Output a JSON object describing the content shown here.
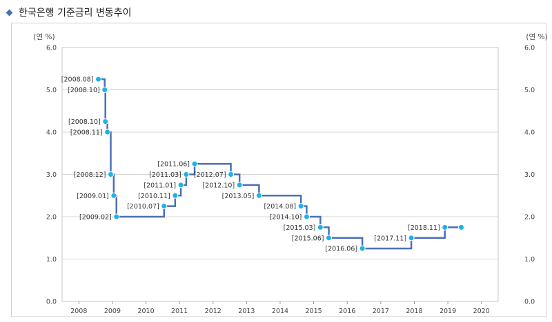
{
  "header": {
    "title": "한국은행 기준금리 변동추이",
    "icon": "diamond-bullet-icon"
  },
  "chart_data": {
    "type": "line",
    "step": true,
    "ylabel_left": "(연 %)",
    "ylabel_right": "(연 %)",
    "xlim": [
      2007.5,
      2020.5
    ],
    "ylim": [
      0,
      6
    ],
    "grid": true,
    "x_ticks": [
      "2008",
      "2009",
      "2010",
      "2011",
      "2012",
      "2013",
      "2014",
      "2015",
      "2016",
      "2017",
      "2018",
      "2019",
      "2020"
    ],
    "y_ticks": [
      "0.0",
      "1.0",
      "2.0",
      "3.0",
      "4.0",
      "5.0",
      "6.0"
    ],
    "series": [
      {
        "color": "#4a6fb5",
        "marker_color": "#1fb2e8",
        "points": [
          {
            "x": 2008.58,
            "y": 5.25,
            "label": "[2008.08]"
          },
          {
            "x": 2008.77,
            "y": 5.0,
            "label": "[2008.10]"
          },
          {
            "x": 2008.79,
            "y": 4.25,
            "label": "[2008.10]"
          },
          {
            "x": 2008.85,
            "y": 4.0,
            "label": "[2008.11]"
          },
          {
            "x": 2008.95,
            "y": 3.0,
            "label": "[2008.12]"
          },
          {
            "x": 2009.04,
            "y": 2.5,
            "label": "[2009.01]"
          },
          {
            "x": 2009.12,
            "y": 2.0,
            "label": "[2009.02]"
          },
          {
            "x": 2010.54,
            "y": 2.25,
            "label": "[2010.07]"
          },
          {
            "x": 2010.87,
            "y": 2.5,
            "label": "[2010.11]"
          },
          {
            "x": 2011.04,
            "y": 2.75,
            "label": "[2011.01]"
          },
          {
            "x": 2011.2,
            "y": 3.0,
            "label": "[2011.03]"
          },
          {
            "x": 2011.45,
            "y": 3.25,
            "label": "[2011.06]"
          },
          {
            "x": 2012.53,
            "y": 3.0,
            "label": "[2012.07]"
          },
          {
            "x": 2012.79,
            "y": 2.75,
            "label": "[2012.10]"
          },
          {
            "x": 2013.37,
            "y": 2.5,
            "label": "[2013.05]"
          },
          {
            "x": 2014.62,
            "y": 2.25,
            "label": "[2014.08]"
          },
          {
            "x": 2014.79,
            "y": 2.0,
            "label": "[2014.10]"
          },
          {
            "x": 2015.2,
            "y": 1.75,
            "label": "[2015.03]"
          },
          {
            "x": 2015.45,
            "y": 1.5,
            "label": "[2015.06]"
          },
          {
            "x": 2016.45,
            "y": 1.25,
            "label": "[2016.06]"
          },
          {
            "x": 2017.91,
            "y": 1.5,
            "label": "[2017.11]"
          },
          {
            "x": 2018.91,
            "y": 1.75,
            "label": "[2018.11]"
          },
          {
            "x": 2019.4,
            "y": 1.75,
            "label": ""
          }
        ]
      }
    ]
  }
}
